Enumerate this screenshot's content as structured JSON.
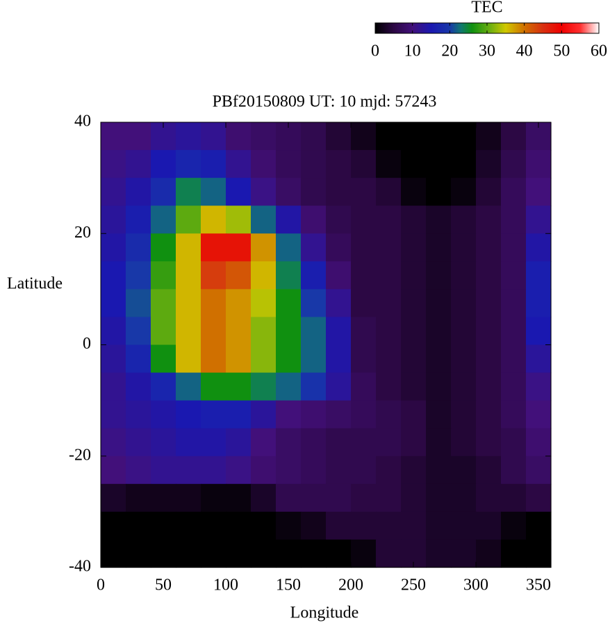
{
  "chart_data": {
    "type": "heatmap",
    "title": "PBf20150809  UT: 10  mjd: 57243",
    "xlabel": "Longitude",
    "ylabel": "Latitude",
    "colorbar_label": "TEC",
    "xlim": [
      0,
      360
    ],
    "xticks": [
      0,
      50,
      100,
      150,
      200,
      250,
      300,
      350
    ],
    "ylim": [
      -40,
      40
    ],
    "yticks": [
      -40,
      -20,
      0,
      20,
      40
    ],
    "clim": [
      0,
      60
    ],
    "cticks": [
      0,
      10,
      20,
      30,
      40,
      50,
      60
    ],
    "colorscale": [
      [
        0,
        "#000000"
      ],
      [
        5,
        "#2c0844"
      ],
      [
        10,
        "#42107a"
      ],
      [
        15,
        "#1a18b0"
      ],
      [
        20,
        "#1838a8"
      ],
      [
        23,
        "#107870"
      ],
      [
        26,
        "#109010"
      ],
      [
        31,
        "#70b010"
      ],
      [
        35,
        "#d0c800"
      ],
      [
        40,
        "#d07000"
      ],
      [
        45,
        "#d83010"
      ],
      [
        50,
        "#f00000"
      ],
      [
        55,
        "#ff3030"
      ],
      [
        60,
        "#ffffff"
      ]
    ],
    "x": [
      10,
      30,
      50,
      70,
      90,
      110,
      130,
      150,
      170,
      190,
      210,
      230,
      250,
      270,
      290,
      310,
      330,
      350
    ],
    "y": [
      37.5,
      32.5,
      27.5,
      22.5,
      17.5,
      12.5,
      7.5,
      2.5,
      -2.5,
      -7.5,
      -12.5,
      -17.5,
      -22.5,
      -27.5,
      -32.5,
      -37.5
    ],
    "z": [
      [
        10,
        10,
        12,
        13,
        12,
        9,
        8,
        7,
        6,
        4,
        2,
        0,
        0,
        0,
        0,
        2,
        5,
        8
      ],
      [
        11,
        12,
        15,
        17,
        16,
        12,
        9,
        7,
        6,
        5,
        4,
        1,
        0,
        0,
        0,
        3,
        6,
        9
      ],
      [
        12,
        14,
        18,
        24,
        22,
        15,
        11,
        8,
        6,
        5,
        5,
        4,
        1,
        0,
        1,
        4,
        7,
        10
      ],
      [
        13,
        16,
        22,
        30,
        36,
        33,
        22,
        14,
        9,
        6,
        5,
        5,
        4,
        3,
        4,
        5,
        7,
        12
      ],
      [
        14,
        18,
        26,
        36,
        48,
        48,
        38,
        22,
        12,
        7,
        5,
        5,
        4,
        3,
        4,
        5,
        7,
        14
      ],
      [
        15,
        20,
        28,
        36,
        44,
        42,
        36,
        24,
        16,
        9,
        5,
        5,
        4,
        3,
        4,
        5,
        7,
        16
      ],
      [
        15,
        21,
        30,
        36,
        40,
        38,
        34,
        26,
        20,
        12,
        5,
        5,
        4,
        3,
        4,
        5,
        7,
        16
      ],
      [
        14,
        20,
        30,
        36,
        40,
        38,
        32,
        26,
        22,
        14,
        6,
        5,
        4,
        3,
        4,
        5,
        7,
        15
      ],
      [
        13,
        17,
        26,
        36,
        40,
        38,
        32,
        26,
        22,
        14,
        6,
        5,
        4,
        3,
        4,
        5,
        7,
        13
      ],
      [
        12,
        14,
        17,
        22,
        26,
        26,
        24,
        22,
        19,
        13,
        7,
        5,
        4,
        3,
        4,
        5,
        7,
        11
      ],
      [
        12,
        13,
        14,
        15,
        16,
        16,
        13,
        10,
        9,
        8,
        7,
        6,
        5,
        3,
        4,
        5,
        7,
        10
      ],
      [
        11,
        12,
        13,
        14,
        14,
        13,
        10,
        8,
        7,
        6,
        6,
        6,
        5,
        3,
        4,
        5,
        6,
        9
      ],
      [
        10,
        11,
        12,
        12,
        12,
        11,
        9,
        8,
        7,
        6,
        6,
        5,
        4,
        3,
        3,
        4,
        6,
        8
      ],
      [
        3,
        2,
        2,
        2,
        1,
        1,
        3,
        6,
        6,
        6,
        5,
        5,
        4,
        3,
        3,
        4,
        4,
        5
      ],
      [
        0,
        0,
        0,
        0,
        0,
        0,
        0,
        1,
        2,
        4,
        4,
        4,
        4,
        3,
        3,
        3,
        1,
        0
      ],
      [
        0,
        0,
        0,
        0,
        0,
        0,
        0,
        0,
        0,
        0,
        1,
        4,
        4,
        3,
        3,
        2,
        0,
        0
      ]
    ]
  }
}
